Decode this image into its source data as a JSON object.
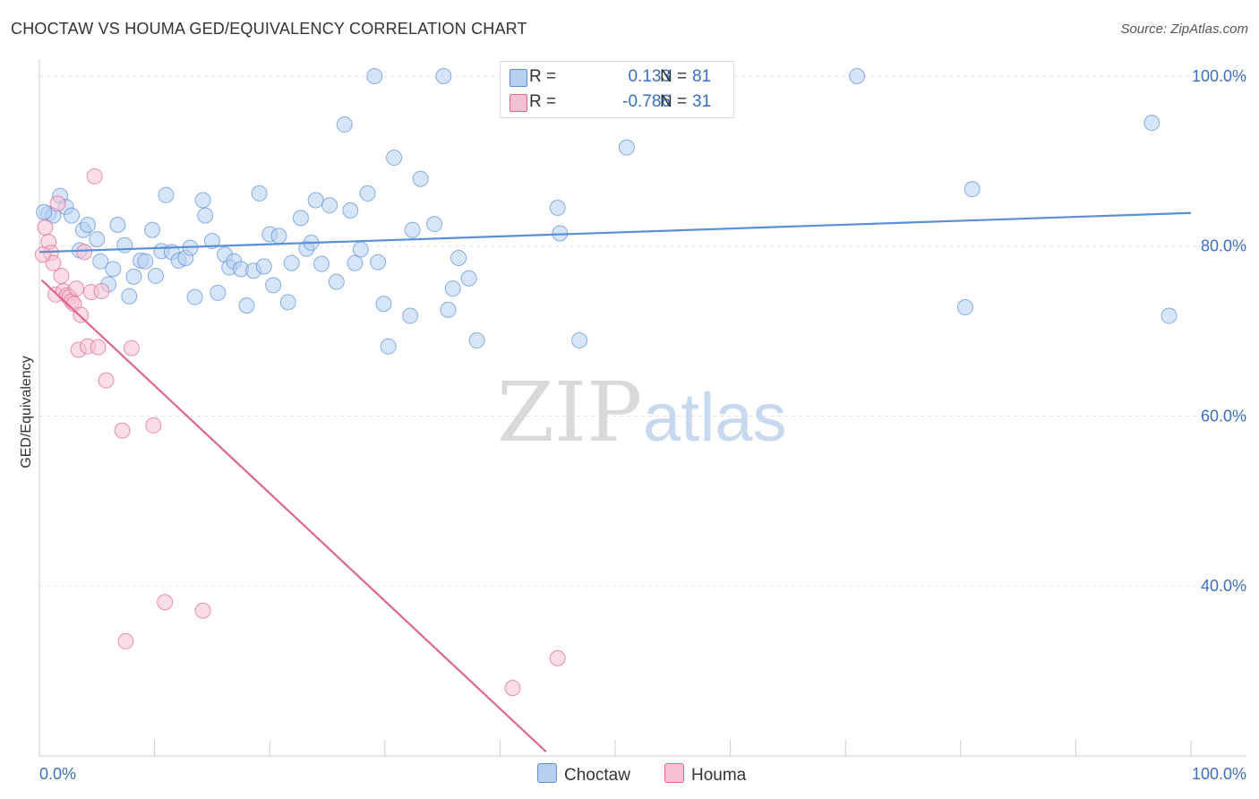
{
  "title": "CHOCTAW VS HOUMA GED/EQUIVALENCY CORRELATION CHART",
  "source": "Source: ZipAtlas.com",
  "watermark": {
    "zip": "ZIP",
    "atlas": "atlas"
  },
  "legend": {
    "r_label": "R =",
    "n_label": "N =",
    "rows": [
      {
        "r": "0.133",
        "n": "81",
        "color": "#a8c8f0"
      },
      {
        "r": "-0.786",
        "n": "31",
        "color": "#f5b8cc"
      }
    ]
  },
  "chart_data": {
    "type": "scatter",
    "title": "CHOCTAW VS HOUMA GED/EQUIVALENCY CORRELATION CHART",
    "xlabel": "",
    "ylabel": "GED/Equivalency",
    "xlim": [
      0,
      100
    ],
    "ylim": [
      20,
      102
    ],
    "x_tick_labels": [
      {
        "value": 0,
        "label": "0.0%"
      },
      {
        "value": 100,
        "label": "100.0%"
      }
    ],
    "y_tick_labels": [
      {
        "value": 100,
        "label": "100.0%"
      },
      {
        "value": 80,
        "label": "80.0%"
      },
      {
        "value": 60,
        "label": "60.0%"
      },
      {
        "value": 40,
        "label": "40.0%"
      }
    ],
    "grid": true,
    "legend_position": "bottom-center",
    "series": [
      {
        "name": "Choctaw",
        "color": "#5b8fd6",
        "fill": "#b7d0f2",
        "trend": {
          "x": [
            0,
            100
          ],
          "y": [
            79.3,
            83.9
          ]
        },
        "points": [
          [
            0.8,
            83.8
          ],
          [
            1.2,
            83.6
          ],
          [
            1.8,
            85.9
          ],
          [
            2.3,
            84.6
          ],
          [
            2.8,
            83.6
          ],
          [
            3.5,
            79.5
          ],
          [
            3.8,
            81.9
          ],
          [
            4.2,
            82.5
          ],
          [
            5.0,
            80.8
          ],
          [
            5.3,
            78.2
          ],
          [
            6.0,
            75.5
          ],
          [
            6.4,
            77.3
          ],
          [
            6.8,
            82.5
          ],
          [
            7.4,
            80.1
          ],
          [
            7.8,
            74.1
          ],
          [
            8.2,
            76.4
          ],
          [
            8.8,
            78.3
          ],
          [
            9.2,
            78.2
          ],
          [
            9.8,
            81.9
          ],
          [
            10.1,
            76.5
          ],
          [
            10.6,
            79.4
          ],
          [
            11.0,
            86.0
          ],
          [
            11.5,
            79.3
          ],
          [
            12.1,
            78.3
          ],
          [
            12.7,
            78.6
          ],
          [
            13.1,
            79.8
          ],
          [
            13.5,
            74.0
          ],
          [
            14.2,
            85.4
          ],
          [
            14.4,
            83.6
          ],
          [
            15.0,
            80.6
          ],
          [
            15.5,
            74.5
          ],
          [
            16.1,
            79.0
          ],
          [
            16.5,
            77.5
          ],
          [
            16.9,
            78.2
          ],
          [
            17.5,
            77.3
          ],
          [
            18.0,
            73.0
          ],
          [
            18.6,
            77.1
          ],
          [
            19.1,
            86.2
          ],
          [
            19.5,
            77.6
          ],
          [
            20.0,
            81.4
          ],
          [
            20.3,
            75.4
          ],
          [
            20.8,
            81.2
          ],
          [
            21.6,
            73.4
          ],
          [
            21.9,
            78.0
          ],
          [
            22.7,
            83.3
          ],
          [
            23.2,
            79.7
          ],
          [
            23.6,
            80.4
          ],
          [
            24.0,
            85.4
          ],
          [
            24.5,
            77.9
          ],
          [
            25.2,
            84.8
          ],
          [
            25.8,
            75.8
          ],
          [
            26.5,
            94.3
          ],
          [
            27.0,
            84.2
          ],
          [
            27.4,
            78.0
          ],
          [
            27.9,
            79.6
          ],
          [
            28.5,
            86.2
          ],
          [
            29.1,
            100.0
          ],
          [
            29.4,
            78.1
          ],
          [
            29.9,
            73.2
          ],
          [
            30.3,
            68.2
          ],
          [
            30.8,
            90.4
          ],
          [
            32.2,
            71.8
          ],
          [
            32.4,
            81.9
          ],
          [
            33.1,
            87.9
          ],
          [
            34.3,
            82.6
          ],
          [
            35.1,
            100.0
          ],
          [
            35.5,
            72.5
          ],
          [
            35.9,
            75.0
          ],
          [
            36.4,
            78.6
          ],
          [
            37.3,
            76.2
          ],
          [
            38.0,
            68.9
          ],
          [
            45.0,
            84.5
          ],
          [
            45.2,
            81.5
          ],
          [
            46.9,
            68.9
          ],
          [
            51.0,
            91.6
          ],
          [
            71.0,
            100.0
          ],
          [
            80.4,
            72.8
          ],
          [
            81.0,
            86.7
          ],
          [
            96.6,
            94.5
          ],
          [
            98.1,
            71.8
          ],
          [
            0.4,
            84.0
          ]
        ]
      },
      {
        "name": "Houma",
        "color": "#e0668e",
        "fill": "#f7c1d2",
        "trend": {
          "x": [
            0.2,
            44.0
          ],
          "y": [
            76.0,
            20.5
          ]
        },
        "points": [
          [
            0.5,
            82.2
          ],
          [
            0.8,
            80.5
          ],
          [
            1.0,
            79.2
          ],
          [
            1.2,
            78.0
          ],
          [
            1.4,
            74.3
          ],
          [
            1.6,
            85.0
          ],
          [
            1.9,
            76.5
          ],
          [
            2.1,
            74.7
          ],
          [
            2.4,
            74.2
          ],
          [
            2.6,
            74.0
          ],
          [
            2.8,
            73.5
          ],
          [
            3.0,
            73.2
          ],
          [
            3.2,
            75.0
          ],
          [
            3.4,
            67.8
          ],
          [
            3.6,
            71.9
          ],
          [
            3.9,
            79.3
          ],
          [
            4.2,
            68.2
          ],
          [
            4.5,
            74.6
          ],
          [
            4.8,
            88.2
          ],
          [
            5.1,
            68.1
          ],
          [
            5.4,
            74.7
          ],
          [
            5.8,
            64.2
          ],
          [
            7.2,
            58.3
          ],
          [
            7.5,
            33.5
          ],
          [
            8.0,
            68.0
          ],
          [
            9.9,
            58.9
          ],
          [
            10.9,
            38.1
          ],
          [
            14.2,
            37.1
          ],
          [
            41.1,
            28.0
          ],
          [
            45.0,
            31.5
          ],
          [
            0.3,
            79.0
          ]
        ]
      }
    ]
  }
}
